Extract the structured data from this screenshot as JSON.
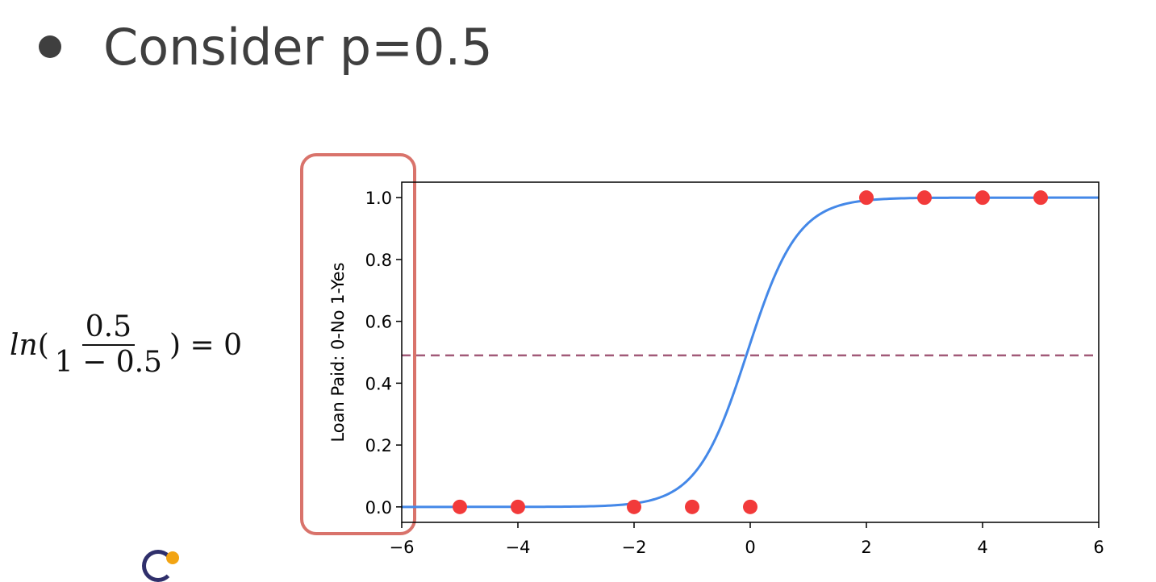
{
  "slide": {
    "bullet_text": "Consider p=0.5"
  },
  "formula": {
    "fn": "ln",
    "open_paren": "(",
    "numerator": "0.5",
    "denominator": "1 − 0.5",
    "closing": ") = 0"
  },
  "colors": {
    "curve": "#4488e8",
    "points": "#f23a3a",
    "threshold_line": "#a15a78",
    "highlight_box": "#d9736b",
    "text": "#3f3f3f"
  },
  "chart_data": {
    "type": "scatter",
    "title": "",
    "xlabel": "",
    "ylabel": "Loan Paid: 0-No 1-Yes",
    "xlim": [
      -6,
      6
    ],
    "ylim": [
      -0.05,
      1.05
    ],
    "xticks": [
      -6,
      -4,
      -2,
      0,
      2,
      4,
      6
    ],
    "xtick_labels": [
      "−6",
      "−4",
      "−2",
      "0",
      "2",
      "4",
      "6"
    ],
    "yticks": [
      0.0,
      0.2,
      0.4,
      0.6,
      0.8,
      1.0
    ],
    "ytick_labels": [
      "0.0",
      "0.2",
      "0.4",
      "0.6",
      "0.8",
      "1.0"
    ],
    "grid": false,
    "curve": {
      "function": "logistic",
      "k": 2.3,
      "x0": -0.05
    },
    "points": {
      "x": [
        -5,
        -4,
        -2,
        -1,
        0,
        2,
        3,
        4,
        5
      ],
      "y": [
        0,
        0,
        0,
        0,
        0,
        1,
        1,
        1,
        1
      ]
    },
    "threshold": 0.49,
    "highlight": "y-axis labels"
  }
}
